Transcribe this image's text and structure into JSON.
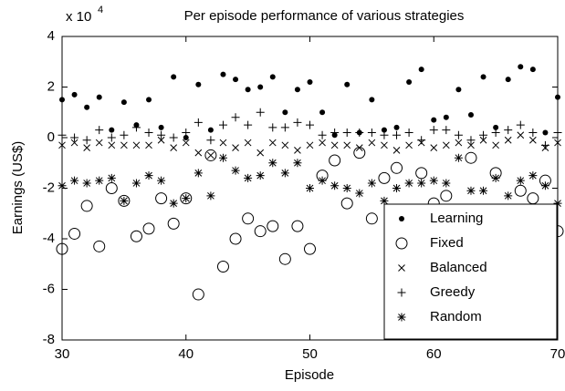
{
  "chart_data": {
    "type": "scatter",
    "title": "Per episode performance of various strategies",
    "xlabel": "Episode",
    "ylabel": "Earnings (US$)",
    "y_multiplier": "x 10",
    "y_multiplier_exponent": "4",
    "x": [
      30,
      31,
      32,
      33,
      34,
      35,
      36,
      37,
      38,
      39,
      40,
      41,
      42,
      43,
      44,
      45,
      46,
      47,
      48,
      49,
      50,
      51,
      52,
      53,
      54,
      55,
      56,
      57,
      58,
      59,
      60,
      61,
      62,
      63,
      64,
      65,
      66,
      67,
      68,
      69,
      70
    ],
    "xlim": [
      30,
      70
    ],
    "xticks": [
      30,
      40,
      50,
      60,
      70
    ],
    "ylim": [
      -8,
      4
    ],
    "yticks": [
      -8,
      -6,
      -4,
      -2,
      0,
      2,
      4
    ],
    "legend": "lower right",
    "series": [
      {
        "name": "Learning",
        "color": "#000000",
        "marker": ".",
        "values": [
          1.5,
          1.7,
          1.2,
          1.6,
          0.3,
          1.4,
          0.5,
          1.5,
          0.4,
          2.4,
          0.0,
          2.1,
          0.3,
          2.5,
          2.3,
          1.9,
          2.0,
          2.4,
          1.0,
          1.9,
          2.2,
          1.0,
          0.1,
          2.1,
          0.2,
          1.5,
          0.3,
          0.4,
          2.2,
          2.7,
          0.7,
          0.8,
          1.9,
          0.9,
          2.4,
          0.4,
          2.3,
          2.8,
          2.7,
          0.2,
          1.6
        ]
      },
      {
        "name": "Fixed",
        "color": "#000000",
        "marker": "o",
        "values": [
          -4.4,
          -3.8,
          -2.7,
          -4.3,
          -2.0,
          -2.5,
          -3.9,
          -3.6,
          -2.4,
          -3.4,
          -2.4,
          -6.2,
          -0.7,
          -5.1,
          -4.0,
          -3.2,
          -3.7,
          -3.5,
          -4.8,
          -3.5,
          -4.4,
          -1.5,
          -0.9,
          -2.6,
          -0.6,
          -3.2,
          -1.6,
          -1.2,
          -2.9,
          -1.4,
          -2.6,
          -2.3,
          -3.4,
          -0.8,
          -3.0,
          -1.4,
          -3.3,
          -2.1,
          -2.4,
          -1.7,
          -3.7
        ]
      },
      {
        "name": "Balanced",
        "color": "#000000",
        "marker": "x",
        "values": [
          -0.3,
          -0.2,
          -0.4,
          -0.2,
          -0.3,
          -0.3,
          -0.3,
          -0.3,
          -0.1,
          -0.4,
          -0.2,
          -0.6,
          -0.7,
          -0.2,
          -0.4,
          -0.2,
          -0.6,
          -0.2,
          -0.3,
          -0.5,
          -0.3,
          -0.2,
          -0.3,
          -0.3,
          -0.4,
          -0.2,
          -0.3,
          -0.5,
          -0.3,
          -0.2,
          -0.4,
          -0.3,
          -0.2,
          -0.3,
          -0.1,
          -0.3,
          -0.1,
          0.1,
          -0.1,
          -0.4,
          -0.2
        ]
      },
      {
        "name": "Greedy",
        "color": "#000000",
        "marker": "+",
        "values": [
          0.1,
          0.0,
          -0.1,
          0.3,
          0.0,
          0.1,
          0.4,
          0.2,
          0.1,
          0.0,
          0.2,
          0.6,
          -0.1,
          0.5,
          0.8,
          0.5,
          1.0,
          0.4,
          0.4,
          0.6,
          0.5,
          0.1,
          0.2,
          0.2,
          0.2,
          0.2,
          0.1,
          0.1,
          0.2,
          -0.1,
          0.3,
          0.3,
          0.1,
          -0.1,
          0.1,
          0.2,
          0.3,
          0.5,
          0.2,
          -0.3,
          0.2
        ]
      },
      {
        "name": "Random",
        "color": "#000000",
        "marker": "*",
        "values": [
          -1.9,
          -1.7,
          -1.8,
          -1.7,
          -1.6,
          -2.5,
          -1.8,
          -1.5,
          -1.7,
          -2.6,
          -2.4,
          -1.4,
          -2.3,
          -0.8,
          -1.3,
          -1.6,
          -1.5,
          -1.0,
          -1.4,
          -1.0,
          -2.0,
          -1.7,
          -1.9,
          -2.0,
          -2.2,
          -1.8,
          -2.5,
          -2.0,
          -1.8,
          -1.8,
          -1.7,
          -1.8,
          -0.8,
          -2.1,
          -2.1,
          -1.6,
          -2.3,
          -1.7,
          -1.5,
          -1.9,
          -2.6
        ]
      }
    ]
  }
}
